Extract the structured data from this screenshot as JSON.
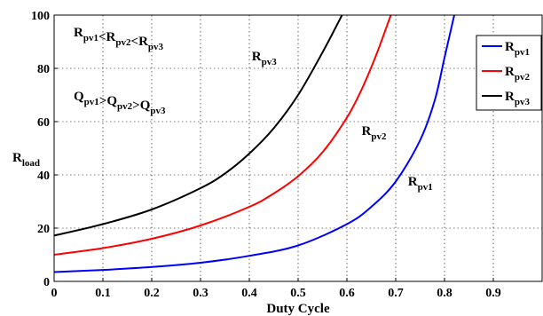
{
  "chart_data": {
    "type": "line",
    "xlabel": "Duty Cycle",
    "ylabel": {
      "main": "R",
      "sub": "load"
    },
    "xlim": [
      0,
      1
    ],
    "ylim": [
      0,
      100
    ],
    "xticks": [
      "0",
      "0.1",
      "0.2",
      "0.3",
      "0.4",
      "0.5",
      "0.6",
      "0.7",
      "0.8",
      "0.9"
    ],
    "yticks": [
      "0",
      "20",
      "40",
      "60",
      "80",
      "100"
    ],
    "grid": true,
    "legend_position": "top-right",
    "series": [
      {
        "name": {
          "main": "R",
          "sub": "pv1"
        },
        "color": "#0000ff",
        "x": [
          0,
          0.1,
          0.2,
          0.3,
          0.4,
          0.5,
          0.6,
          0.65,
          0.7,
          0.75,
          0.78,
          0.8,
          0.82
        ],
        "y": [
          3.5,
          4.3,
          5.4,
          7.0,
          9.6,
          13.5,
          21.5,
          28.0,
          37.5,
          53.0,
          68.0,
          84.0,
          100
        ]
      },
      {
        "name": {
          "main": "R",
          "sub": "pv2"
        },
        "color": "#ff0000",
        "x": [
          0,
          0.1,
          0.2,
          0.3,
          0.4,
          0.45,
          0.5,
          0.55,
          0.6,
          0.63,
          0.66,
          0.69
        ],
        "y": [
          10.0,
          12.5,
          16.0,
          21.0,
          28.0,
          33.0,
          39.5,
          48.5,
          61.5,
          72.0,
          85.0,
          100
        ]
      },
      {
        "name": {
          "main": "R",
          "sub": "pv3"
        },
        "color": "#000000",
        "x": [
          0,
          0.1,
          0.2,
          0.3,
          0.35,
          0.4,
          0.45,
          0.5,
          0.55,
          0.59
        ],
        "y": [
          17.2,
          21.5,
          27.0,
          35.0,
          40.5,
          48.0,
          57.5,
          70.0,
          86.0,
          100
        ]
      }
    ],
    "annotations": [
      {
        "id": "order-r",
        "text": "R_pv1<R_pv2<R_pv3",
        "parts": [
          [
            "R",
            "pv1"
          ],
          "<",
          [
            "R",
            "pv2"
          ],
          "<",
          [
            "R",
            "pv3"
          ]
        ],
        "at": [
          0.04,
          92
        ]
      },
      {
        "id": "order-q",
        "text": "Q_pv1>Q_pv2>Q_pv3",
        "parts": [
          [
            "Q",
            "pv1"
          ],
          ">",
          [
            "Q",
            "pv2"
          ],
          ">",
          [
            "Q",
            "pv3"
          ]
        ],
        "at": [
          0.04,
          68
        ]
      },
      {
        "id": "label-rpv3",
        "text": "R_pv3",
        "parts": [
          [
            "R",
            "pv3"
          ]
        ],
        "at": [
          0.405,
          83
        ]
      },
      {
        "id": "label-rpv2",
        "text": "R_pv2",
        "parts": [
          [
            "R",
            "pv2"
          ]
        ],
        "at": [
          0.63,
          55
        ]
      },
      {
        "id": "label-rpv1",
        "text": "R_pv1",
        "parts": [
          [
            "R",
            "pv1"
          ]
        ],
        "at": [
          0.725,
          36
        ]
      }
    ]
  }
}
